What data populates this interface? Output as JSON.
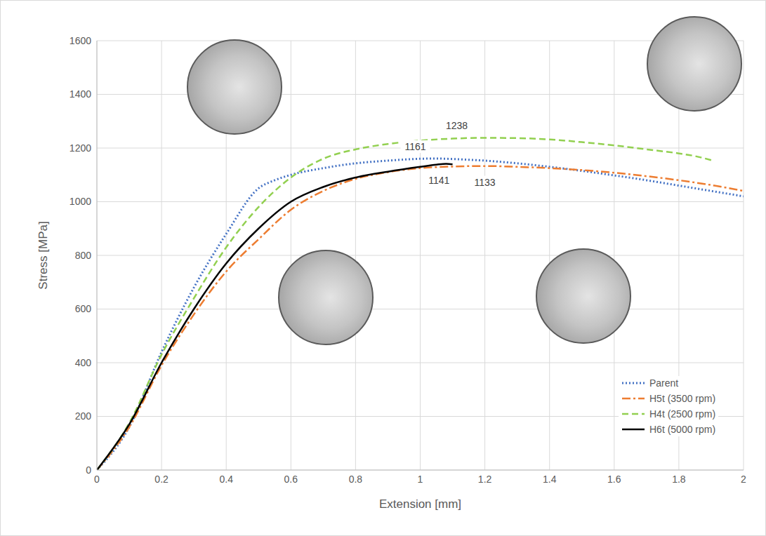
{
  "chart_data": {
    "type": "line",
    "x_label": "Extension [mm]",
    "y_label": "Stress [MPa]",
    "xlim": [
      0,
      2
    ],
    "xticks": [
      0,
      0.2,
      0.4,
      0.6,
      0.8,
      1,
      1.2,
      1.4,
      1.6,
      1.8,
      2
    ],
    "ylim": [
      0,
      1600
    ],
    "yticks": [
      0,
      200,
      400,
      600,
      800,
      1000,
      1200,
      1400,
      1600
    ],
    "grid": true,
    "legend": "lower right",
    "series": [
      {
        "name": "Parent",
        "color": "#4472c4",
        "line_style": "dotted",
        "x": [
          0,
          0.1,
          0.2,
          0.3,
          0.4,
          0.5,
          0.55,
          0.6,
          0.7,
          0.8,
          0.9,
          1.0,
          1.05,
          1.1,
          1.2,
          1.3,
          1.4,
          1.5,
          1.6,
          1.7,
          1.8,
          1.9,
          2.0
        ],
        "values": [
          0,
          160,
          440,
          680,
          880,
          1050,
          1080,
          1100,
          1125,
          1143,
          1153,
          1160,
          1161,
          1159,
          1153,
          1143,
          1130,
          1115,
          1098,
          1080,
          1060,
          1040,
          1020
        ]
      },
      {
        "name": "H5t (3500 rpm)",
        "color": "#ed7d31",
        "line_style": "dashdot",
        "x": [
          0,
          0.1,
          0.2,
          0.3,
          0.4,
          0.5,
          0.6,
          0.7,
          0.8,
          0.9,
          1.0,
          1.1,
          1.2,
          1.3,
          1.4,
          1.5,
          1.6,
          1.7,
          1.8,
          1.9,
          2.0
        ],
        "values": [
          0,
          160,
          390,
          580,
          740,
          860,
          970,
          1040,
          1085,
          1110,
          1125,
          1131,
          1133,
          1130,
          1125,
          1118,
          1108,
          1095,
          1080,
          1062,
          1040
        ]
      },
      {
        "name": "H4t (2500 rpm)",
        "color": "#92d050",
        "line_style": "dashed",
        "x": [
          0,
          0.1,
          0.2,
          0.3,
          0.4,
          0.5,
          0.6,
          0.7,
          0.8,
          0.9,
          1.0,
          1.1,
          1.2,
          1.3,
          1.4,
          1.5,
          1.6,
          1.7,
          1.8,
          1.85,
          1.9
        ],
        "values": [
          0,
          175,
          430,
          640,
          830,
          980,
          1090,
          1160,
          1195,
          1215,
          1228,
          1235,
          1238,
          1237,
          1232,
          1222,
          1210,
          1195,
          1180,
          1170,
          1155
        ]
      },
      {
        "name": "H6t (5000 rpm)",
        "color": "#000000",
        "line_style": "solid",
        "x": [
          0,
          0.1,
          0.2,
          0.3,
          0.4,
          0.5,
          0.6,
          0.7,
          0.8,
          0.9,
          1.0,
          1.05,
          1.08,
          1.1
        ],
        "values": [
          0,
          170,
          400,
          600,
          770,
          900,
          1000,
          1055,
          1090,
          1112,
          1130,
          1138,
          1141,
          1139
        ]
      }
    ],
    "annotations": [
      {
        "series": "Parent",
        "value": 1161
      },
      {
        "series": "H4t (2500 rpm)",
        "value": 1238
      },
      {
        "series": "H6t (5000 rpm)",
        "value": 1141
      },
      {
        "series": "H5t (3500 rpm)",
        "value": 1133
      }
    ]
  }
}
